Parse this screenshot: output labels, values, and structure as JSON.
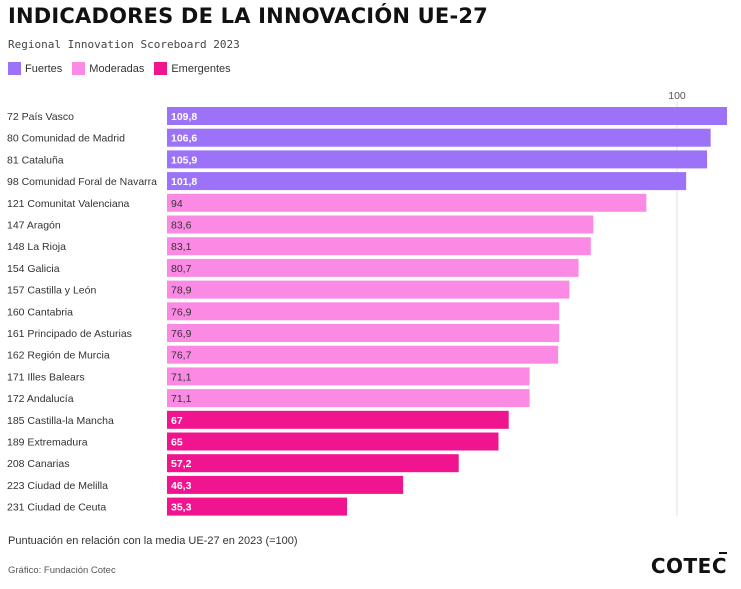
{
  "title": "INDICADORES DE LA INNOVACIÓN UE-27",
  "subtitle": "Regional Innovation Scoreboard 2023",
  "legend": [
    {
      "label": "Fuertes",
      "color": "#9b72f8"
    },
    {
      "label": "Moderadas",
      "color": "#fb8ae4"
    },
    {
      "label": "Emergentes",
      "color": "#f0148e"
    }
  ],
  "note": "Puntuación en relación con la media UE-27 en 2023 (=100)",
  "source": "Gráfico: Fundación Cotec",
  "logo": "COTEC",
  "chart_data": {
    "type": "bar",
    "orientation": "horizontal",
    "xlim": [
      0,
      110
    ],
    "reference_tick": {
      "value": 100,
      "label": "100"
    },
    "categories": [
      "72 País Vasco",
      "80 Comunidad de Madrid",
      "81 Cataluña",
      "98 Comunidad Foral de Navarra",
      "121 Comunitat Valenciana",
      "147 Aragón",
      "148 La Rioja",
      "154 Galicia",
      "157 Castilla y León",
      "160 Cantabria",
      "161 Principado de Asturias",
      "162 Región de Murcia",
      "171 Illes Balears",
      "172 Andalucía",
      "185 Castilla-la Mancha",
      "189 Extremadura",
      "208 Canarias",
      "223 Ciudad de Melilla",
      "231 Ciudad de Ceuta"
    ],
    "values": [
      109.8,
      106.6,
      105.9,
      101.8,
      94,
      83.6,
      83.1,
      80.7,
      78.9,
      76.9,
      76.9,
      76.7,
      71.1,
      71.1,
      67,
      65,
      57.2,
      46.3,
      35.3
    ],
    "value_labels": [
      "109,8",
      "106,6",
      "105,9",
      "101,8",
      "94",
      "83,6",
      "83,1",
      "80,7",
      "78,9",
      "76,9",
      "76,9",
      "76,7",
      "71,1",
      "71,1",
      "67",
      "65",
      "57,2",
      "46,3",
      "35,3"
    ],
    "groups": [
      "Fuertes",
      "Fuertes",
      "Fuertes",
      "Fuertes",
      "Moderadas",
      "Moderadas",
      "Moderadas",
      "Moderadas",
      "Moderadas",
      "Moderadas",
      "Moderadas",
      "Moderadas",
      "Moderadas",
      "Moderadas",
      "Emergentes",
      "Emergentes",
      "Emergentes",
      "Emergentes",
      "Emergentes"
    ]
  }
}
